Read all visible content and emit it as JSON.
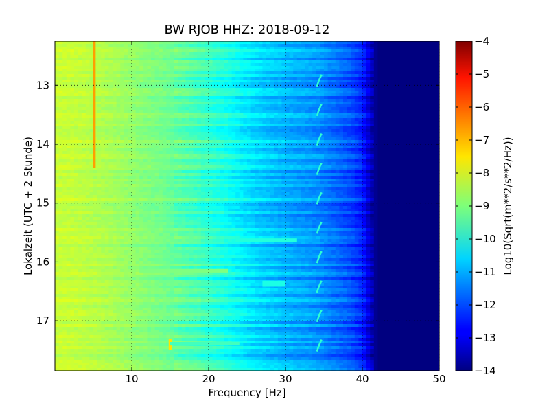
{
  "chart_data": {
    "type": "heatmap",
    "title": "BW RJOB HHZ: 2018-09-12",
    "xlabel": "Frequency [Hz]",
    "ylabel": "Lokalzeit (UTC + 2 Stunde)",
    "colorbar_label": "Log10(Sqrt(m**2/s**2/Hz))",
    "xlim": [
      0,
      50
    ],
    "ylim_hours": [
      12.25,
      17.85
    ],
    "y_inverted": true,
    "x_ticks": [
      10,
      20,
      30,
      40,
      50
    ],
    "x_tick_labels": [
      "10",
      "20",
      "30",
      "40",
      "50"
    ],
    "y_ticks": [
      13,
      14,
      15,
      16,
      17
    ],
    "y_tick_labels": [
      "13",
      "14",
      "15",
      "16",
      "17"
    ],
    "colorbar_range": [
      -14,
      -4
    ],
    "colorbar_ticks": [
      -4,
      -5,
      -6,
      -7,
      -8,
      -9,
      -10,
      -11,
      -12,
      -13,
      -14
    ],
    "colorbar_tick_labels": [
      "−4",
      "−5",
      "−6",
      "−7",
      "−8",
      "−9",
      "−10",
      "−11",
      "−12",
      "−13",
      "−14"
    ],
    "colormap": "jet",
    "grid": true,
    "frequency_profile": [
      {
        "f": 0,
        "v": -8.3
      },
      {
        "f": 2,
        "v": -8.3
      },
      {
        "f": 6,
        "v": -8.5
      },
      {
        "f": 10,
        "v": -8.8
      },
      {
        "f": 14,
        "v": -9.1
      },
      {
        "f": 18,
        "v": -9.5
      },
      {
        "f": 22,
        "v": -10.0
      },
      {
        "f": 26,
        "v": -10.6
      },
      {
        "f": 30,
        "v": -11.0
      },
      {
        "f": 34,
        "v": -11.3
      },
      {
        "f": 38,
        "v": -11.9
      },
      {
        "f": 40,
        "v": -12.4
      },
      {
        "f": 41,
        "v": -13.3
      },
      {
        "f": 42,
        "v": -14.0
      },
      {
        "f": 50,
        "v": -14.0
      }
    ],
    "line_features": [
      {
        "f_start": 5.0,
        "f_end": 5.3,
        "t_start": 12.25,
        "t_end": 14.4,
        "v": -6.8
      },
      {
        "f_start": 14.8,
        "f_end": 15.2,
        "t_start": 17.3,
        "t_end": 17.5,
        "v": -7.5
      },
      {
        "f_start": 23.5,
        "f_end": 31.5,
        "t_start": 15.6,
        "t_end": 15.66,
        "v": -9.9
      },
      {
        "f_start": 11.0,
        "f_end": 22.5,
        "t_start": 16.12,
        "t_end": 16.18,
        "v": -9.0
      },
      {
        "f_start": 27.0,
        "f_end": 30.0,
        "t_start": 16.32,
        "t_end": 16.42,
        "v": -10.0
      },
      {
        "f_start": 15.0,
        "f_end": 24.0,
        "t_start": 17.36,
        "t_end": 17.42,
        "v": -9.6
      }
    ],
    "time_tone_frequency_hz": 34.5
  }
}
